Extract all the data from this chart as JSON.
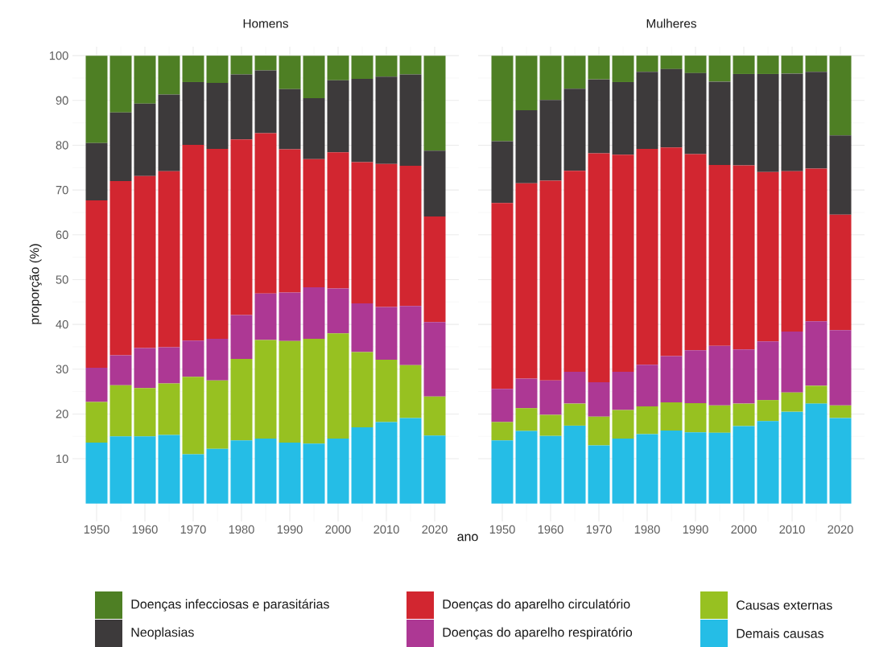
{
  "chart_data": [
    {
      "type": "bar",
      "stacked": true,
      "title": "Homens",
      "xlabel": "ano",
      "ylabel": "proporção (%)",
      "grid": true,
      "legend": "bottom",
      "x": [
        1950,
        1955,
        1960,
        1965,
        1970,
        1975,
        1980,
        1985,
        1990,
        1995,
        2000,
        2005,
        2010,
        2015,
        2020
      ],
      "xlim": [
        1945,
        2025
      ],
      "xticks": [
        1950,
        1960,
        1970,
        1980,
        1990,
        2000,
        2010,
        2020
      ],
      "ylim": [
        -4,
        102
      ],
      "yticks": [
        10,
        20,
        30,
        40,
        50,
        60,
        70,
        80,
        90,
        100
      ],
      "series": [
        {
          "name": "Demais causas",
          "color": "#25bde6",
          "values": [
            13.6,
            15.0,
            15.0,
            15.3,
            11.0,
            12.2,
            14.1,
            14.5,
            13.6,
            13.4,
            14.5,
            17.0,
            18.2,
            19.1,
            15.2
          ]
        },
        {
          "name": "Causas externas",
          "color": "#97c121",
          "values": [
            9.1,
            11.4,
            10.8,
            11.5,
            17.3,
            15.3,
            18.2,
            22.0,
            22.7,
            23.4,
            23.5,
            16.8,
            13.9,
            11.8,
            8.7
          ]
        },
        {
          "name": "Doenças do aparelho respiratório",
          "color": "#ad3894",
          "values": [
            7.6,
            6.7,
            8.9,
            8.1,
            8.1,
            9.3,
            9.8,
            10.4,
            10.8,
            11.5,
            10.0,
            10.9,
            11.8,
            13.2,
            16.6
          ]
        },
        {
          "name": "Doenças do aparelho circulatório",
          "color": "#d22630",
          "values": [
            37.4,
            38.9,
            38.4,
            39.3,
            43.7,
            42.4,
            39.2,
            35.8,
            32.0,
            28.6,
            30.4,
            31.5,
            31.9,
            31.3,
            23.6
          ]
        },
        {
          "name": "Neoplasias",
          "color": "#3d3a3b",
          "values": [
            12.8,
            15.3,
            16.2,
            17.1,
            14.0,
            14.7,
            14.5,
            14.0,
            13.4,
            13.6,
            16.1,
            18.6,
            19.5,
            20.4,
            14.7
          ]
        },
        {
          "name": "Doenças infecciosas e parasitárias",
          "color": "#4e7f24",
          "values": [
            19.5,
            12.7,
            10.7,
            8.7,
            5.9,
            6.1,
            4.2,
            3.3,
            7.5,
            9.5,
            5.5,
            5.2,
            4.7,
            4.2,
            21.2
          ]
        }
      ]
    },
    {
      "type": "bar",
      "stacked": true,
      "title": "Mulheres",
      "grid": true,
      "tick_labels": "x",
      "x": [
        1950,
        1955,
        1960,
        1965,
        1970,
        1975,
        1980,
        1985,
        1990,
        1995,
        2000,
        2005,
        2010,
        2015,
        2020
      ],
      "xlim": [
        1945,
        2025
      ],
      "xticks": [
        1950,
        1960,
        1970,
        1980,
        1990,
        2000,
        2010,
        2020
      ],
      "ylim": [
        -4,
        102
      ],
      "yticks": [
        10,
        20,
        30,
        40,
        50,
        60,
        70,
        80,
        90,
        100
      ],
      "series": [
        {
          "color": "#25bde6",
          "values": [
            14.1,
            16.2,
            15.1,
            17.4,
            13.0,
            14.5,
            15.5,
            16.3,
            15.9,
            15.8,
            17.3,
            18.4,
            20.5,
            22.3,
            19.1
          ]
        },
        {
          "color": "#97c121",
          "values": [
            4.1,
            5.1,
            4.7,
            4.9,
            6.4,
            6.4,
            6.2,
            6.3,
            6.5,
            6.1,
            5.0,
            4.7,
            4.3,
            4.0,
            2.8
          ]
        },
        {
          "color": "#ad3894",
          "values": [
            7.4,
            6.6,
            7.7,
            7.1,
            7.7,
            8.5,
            9.3,
            10.3,
            11.8,
            13.3,
            12.1,
            13.1,
            13.6,
            14.4,
            16.8
          ]
        },
        {
          "color": "#d22630",
          "values": [
            41.5,
            43.6,
            44.6,
            44.9,
            51.1,
            48.5,
            48.2,
            46.6,
            43.8,
            40.4,
            41.1,
            37.8,
            35.8,
            34.1,
            25.8
          ]
        },
        {
          "color": "#3d3a3b",
          "values": [
            13.8,
            16.3,
            18.0,
            18.3,
            16.5,
            16.2,
            17.2,
            17.5,
            18.1,
            18.6,
            20.4,
            21.9,
            21.8,
            21.6,
            17.7
          ]
        },
        {
          "color": "#4e7f24",
          "values": [
            19.1,
            12.2,
            9.9,
            7.4,
            5.3,
            5.9,
            3.6,
            3.0,
            3.9,
            5.8,
            4.1,
            4.1,
            4.0,
            3.6,
            17.8
          ]
        }
      ]
    }
  ]
}
